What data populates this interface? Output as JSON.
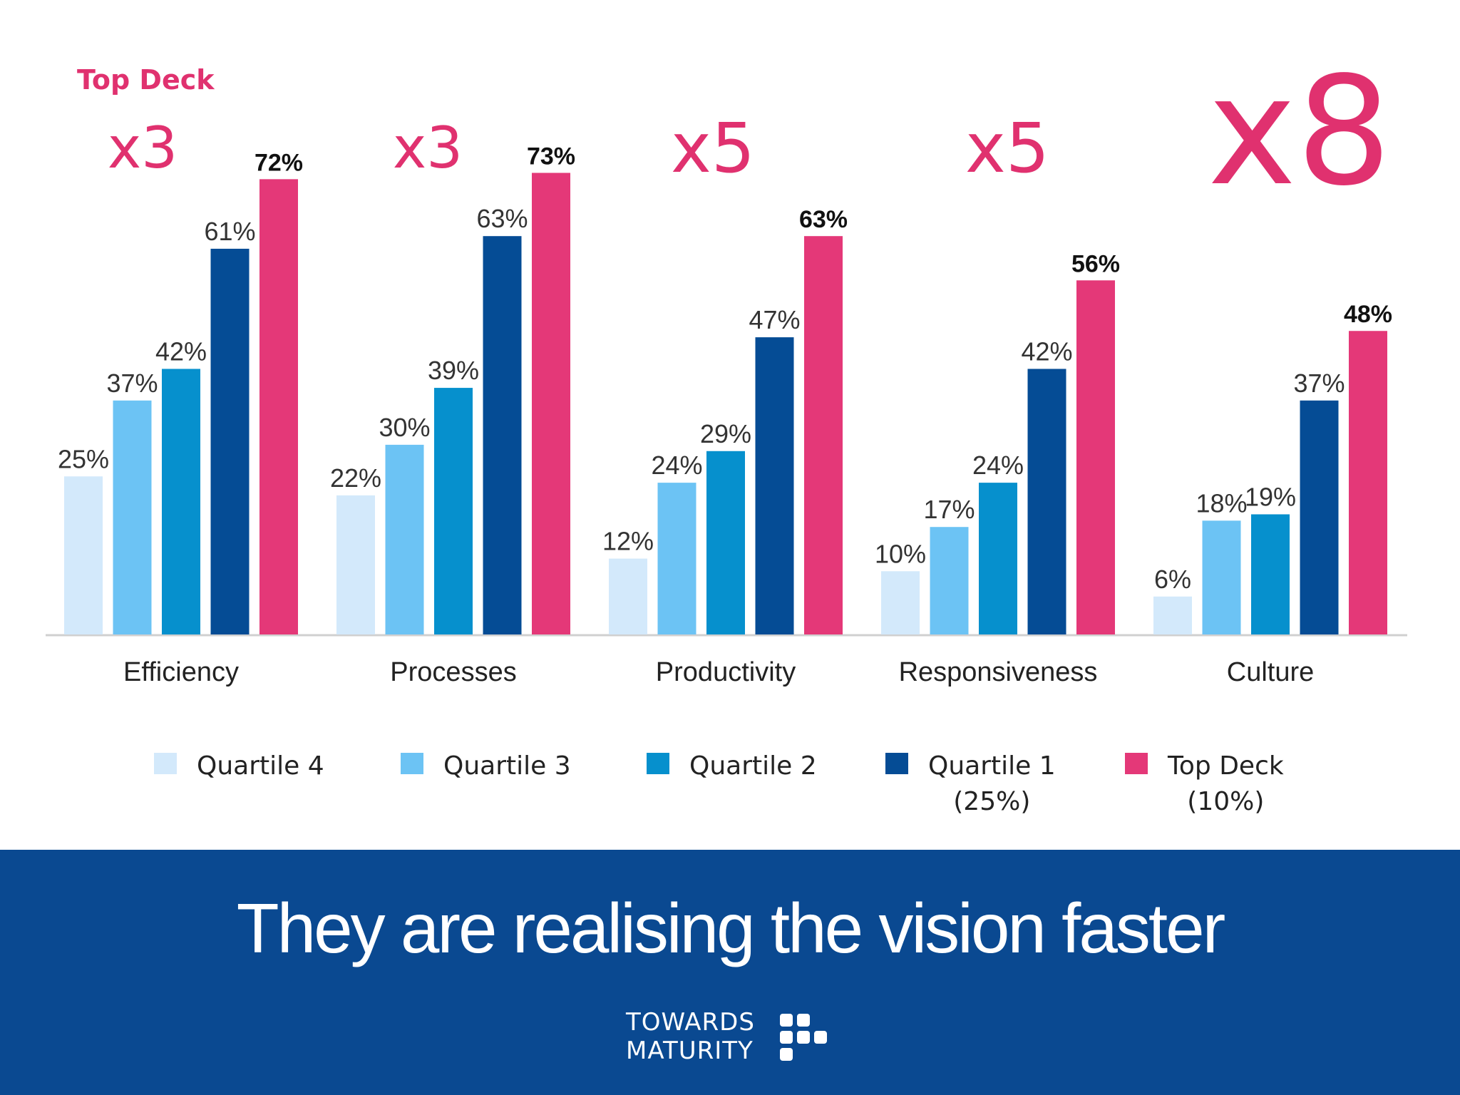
{
  "colors": {
    "accent": "#e0316f",
    "banner": "#0a4991",
    "series": [
      "#d3e9fb",
      "#6cc3f4",
      "#0690cd",
      "#054c95",
      "#e43878"
    ]
  },
  "top_deck_label": "Top Deck",
  "multipliers": [
    "x3",
    "x3",
    "x5",
    "x5",
    "x8"
  ],
  "legend": [
    {
      "line1": "Quartile 4",
      "line2": ""
    },
    {
      "line1": "Quartile 3",
      "line2": ""
    },
    {
      "line1": "Quartile 2",
      "line2": ""
    },
    {
      "line1": "Quartile 1",
      "line2": "(25%)"
    },
    {
      "line1": "Top Deck",
      "line2": "(10%)"
    }
  ],
  "banner": {
    "headline": "They are realising the vision faster",
    "logo_line1": "TOWARDS",
    "logo_line2": "MATURITY"
  },
  "chart_data": {
    "type": "bar",
    "categories": [
      "Efficiency",
      "Processes",
      "Productivity",
      "Responsiveness",
      "Culture"
    ],
    "series": [
      {
        "name": "Quartile 4",
        "values": [
          25,
          22,
          12,
          10,
          6
        ],
        "labels": [
          "25%",
          "22%",
          "12%",
          "10%",
          "6%"
        ]
      },
      {
        "name": "Quartile 3",
        "values": [
          37,
          30,
          24,
          17,
          18
        ],
        "labels": [
          "37%",
          "30%",
          "24%",
          "17%",
          "18%"
        ]
      },
      {
        "name": "Quartile 2",
        "values": [
          42,
          39,
          29,
          24,
          19
        ],
        "labels": [
          "42%",
          "39%",
          "29%",
          "24%",
          "19%"
        ]
      },
      {
        "name": "Quartile 1",
        "values": [
          61,
          63,
          47,
          42,
          37
        ],
        "labels": [
          "61%",
          "63%",
          "47%",
          "42%",
          "37%"
        ]
      },
      {
        "name": "Top Deck",
        "values": [
          72,
          73,
          63,
          56,
          48
        ],
        "labels": [
          "72%",
          "73%",
          "63%",
          "56%",
          "48%"
        ]
      }
    ],
    "ylim": [
      0,
      100
    ],
    "grid": false,
    "legend_position": "bottom"
  }
}
